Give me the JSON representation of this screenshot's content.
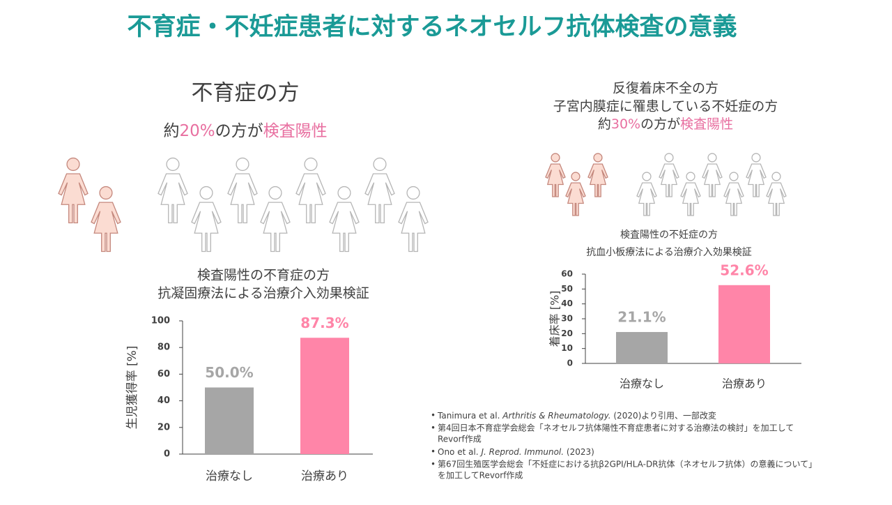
{
  "title": "不育症・不妊症患者に対するネオセルフ抗体検査の意義",
  "left": {
    "heading": "不育症の方",
    "summary": [
      "約",
      "20%",
      "の方が",
      "検査陽性"
    ]
  },
  "right": {
    "heading": [
      "反復着床不全の方",
      "子宮内膜症に罹患している不妊症の方"
    ],
    "summary": [
      "約",
      "30%",
      "の方が",
      "検査陽性"
    ]
  },
  "chart_data": [
    {
      "type": "bar",
      "title": [
        "検査陽性の不育症の方",
        "抗凝固療法による治療介入効果検証"
      ],
      "ylabel": "生児獲得率 [%]",
      "categories": [
        "治療なし",
        "治療あり"
      ],
      "values": [
        50.0,
        87.3
      ],
      "value_labels": [
        "50.0%",
        "87.3%"
      ],
      "colors": [
        "#a6a6a6",
        "#ff85a8"
      ],
      "ylim": [
        0,
        100
      ],
      "yticks": [
        0,
        20,
        40,
        60,
        80,
        100
      ]
    },
    {
      "type": "bar",
      "title": [
        "検査陽性の不妊症の方",
        "抗血小板療法による治療介入効果検証"
      ],
      "ylabel": "着床率 [%]",
      "categories": [
        "治療なし",
        "治療あり"
      ],
      "values": [
        21.1,
        52.6
      ],
      "value_labels": [
        "21.1%",
        "52.6%"
      ],
      "colors": [
        "#a6a6a6",
        "#ff85a8"
      ],
      "ylim": [
        0,
        60
      ],
      "yticks": [
        0,
        10,
        20,
        30,
        40,
        50,
        60
      ]
    }
  ],
  "references": [
    {
      "before": "Tanimura et al. ",
      "journal": "Arthritis & Rheumatology.",
      "after": " (2020)より引用、一部改変"
    },
    {
      "lines": [
        "第4回日本不育症学会総会「ネオセルフ抗体陽性不育症患者に対する治療法の検討」を加工して",
        "Revorf作成"
      ]
    },
    {
      "before": "Ono et al. ",
      "journal": "J. Reprod. Immunol.",
      "after": " (2023)"
    },
    {
      "lines": [
        "第67回生殖医学会総会「不妊症における抗β2GPI/HLA-DR抗体（ネオセルフ抗体）の意義について」",
        "を加工してRevorf作成"
      ]
    }
  ]
}
